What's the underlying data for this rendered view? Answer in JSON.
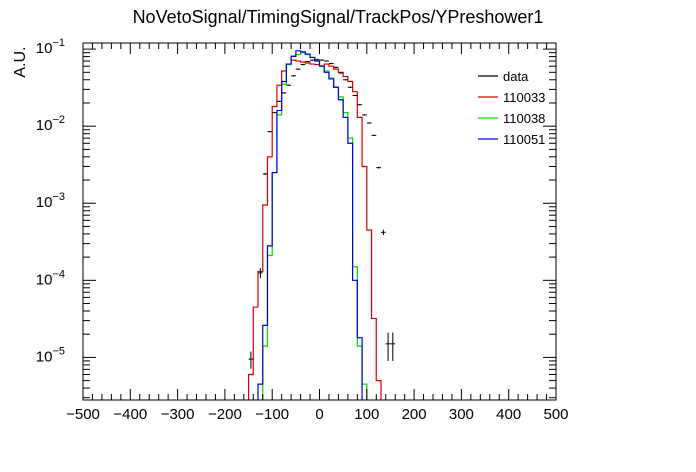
{
  "chart_data": {
    "type": "line",
    "title": "NoVetoSignal/TimingSignal/TrackPos/YPreshower1",
    "xlabel": "",
    "ylabel": "A.U.",
    "xlim": [
      -500,
      500
    ],
    "ylim": [
      2.8e-06,
      0.12
    ],
    "yscale": "log",
    "grid": false,
    "legend_position": "top-right",
    "x_ticks": [
      {
        "label": "−500",
        "value": -500
      },
      {
        "label": "−400",
        "value": -400
      },
      {
        "label": "−300",
        "value": -300
      },
      {
        "label": "−200",
        "value": -200
      },
      {
        "label": "−100",
        "value": -100
      },
      {
        "label": "0",
        "value": 0
      },
      {
        "label": "100",
        "value": 100
      },
      {
        "label": "200",
        "value": 200
      },
      {
        "label": "300",
        "value": 300
      },
      {
        "label": "400",
        "value": 400
      },
      {
        "label": "500",
        "value": 500
      }
    ],
    "y_ticks": [
      {
        "base": "10",
        "exp": "−1",
        "value": 0.1
      },
      {
        "base": "10",
        "exp": "−2",
        "value": 0.01
      },
      {
        "base": "10",
        "exp": "−3",
        "value": 0.001
      },
      {
        "base": "10",
        "exp": "−4",
        "value": 0.0001
      },
      {
        "base": "10",
        "exp": "−5",
        "value": 1e-05
      }
    ],
    "bin_width": 10,
    "series": [
      {
        "name": "data",
        "style": "points",
        "color": "#000000",
        "x": [
          -145,
          -125,
          -115,
          -105,
          -95,
          -85,
          -75,
          -65,
          -55,
          -45,
          -35,
          -25,
          -15,
          -5,
          5,
          15,
          25,
          35,
          45,
          55,
          65,
          75,
          85,
          95,
          105,
          115,
          125,
          135,
          145,
          155
        ],
        "y": [
          9.5e-06,
          0.000125,
          0.0024,
          0.0085,
          0.015,
          0.021,
          0.027,
          0.034,
          0.045,
          0.055,
          0.063,
          0.069,
          0.072,
          0.073,
          0.072,
          0.07,
          0.065,
          0.058,
          0.049,
          0.04,
          0.032,
          0.025,
          0.019,
          0.014,
          0.011,
          0.0076,
          0.0029,
          0.00042,
          1.5e-05,
          1.5e-05
        ],
        "yerr_rel": [
          0.25,
          0.15,
          0.03,
          0.02,
          0.02,
          0.02,
          0.02,
          0.02,
          0.02,
          0.02,
          0.02,
          0.02,
          0.02,
          0.02,
          0.02,
          0.02,
          0.02,
          0.02,
          0.02,
          0.02,
          0.02,
          0.02,
          0.02,
          0.02,
          0.02,
          0.02,
          0.03,
          0.08,
          0.4,
          0.4
        ]
      },
      {
        "name": "110033",
        "style": "step",
        "color": "#dd0000",
        "x0": -150,
        "y": [
          6e-06,
          4.5e-05,
          0.00013,
          0.00095,
          0.004,
          0.018,
          0.034,
          0.052,
          0.064,
          0.072,
          0.07,
          0.068,
          0.066,
          0.064,
          0.063,
          0.061,
          0.064,
          0.06,
          0.055,
          0.05,
          0.044,
          0.038,
          0.028,
          0.013,
          0.003,
          0.00045,
          3.2e-05,
          5e-06
        ]
      },
      {
        "name": "110038",
        "style": "step",
        "color": "#00dd00",
        "x0": -120,
        "y": [
          1.4e-05,
          0.00021,
          0.0025,
          0.014,
          0.035,
          0.063,
          0.082,
          0.085,
          0.09,
          0.085,
          0.078,
          0.07,
          0.061,
          0.052,
          0.042,
          0.032,
          0.024,
          0.015,
          0.007,
          0.00015,
          1.4e-05,
          4.5e-06
        ]
      },
      {
        "name": "110051",
        "style": "step",
        "color": "#0000dd",
        "x0": -130,
        "y": [
          4.5e-06,
          2.6e-05,
          0.00028,
          0.0025,
          0.016,
          0.038,
          0.064,
          0.08,
          0.095,
          0.092,
          0.086,
          0.078,
          0.07,
          0.06,
          0.05,
          0.041,
          0.032,
          0.022,
          0.013,
          0.006,
          0.0001,
          1.8e-05
        ]
      }
    ]
  }
}
